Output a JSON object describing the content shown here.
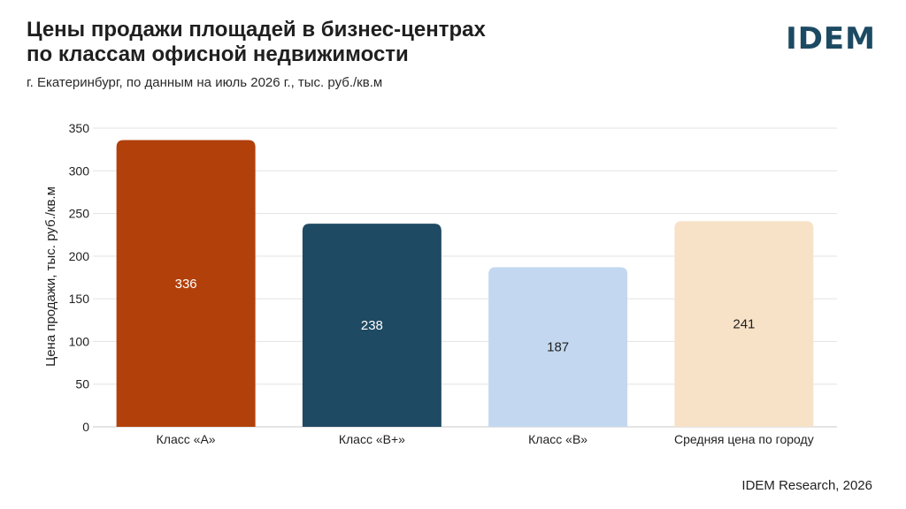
{
  "header": {
    "title_line1": "Цены продажи площадей в бизнес-центрах",
    "title_line2": "по классам офисной недвижимости",
    "subtitle": "г. Екатеринбург, по данным на июль 2026 г., тыс. руб./кв.м",
    "logo": "IDEM"
  },
  "footer": {
    "source": "IDEM Research, 2026"
  },
  "chart_data": {
    "type": "bar",
    "categories": [
      "Класс «А»",
      "Класс «В+»",
      "Класс «В»",
      "Средняя цена по городу"
    ],
    "values": [
      336,
      238,
      187,
      241
    ],
    "value_labels": [
      "336",
      "238",
      "187",
      "241"
    ],
    "colors": [
      "#b2400b",
      "#1f4a63",
      "#c3d8f0",
      "#f7e2c8"
    ],
    "label_colors": [
      "#ffffff",
      "#ffffff",
      "#1f1f1f",
      "#1f1f1f"
    ],
    "ylabel": "Цена продажи, тыс. руб./кв.м",
    "ylim": [
      0,
      350
    ],
    "yticks": [
      0,
      50,
      100,
      150,
      200,
      250,
      300,
      350
    ],
    "grid": true,
    "legend": "none"
  }
}
